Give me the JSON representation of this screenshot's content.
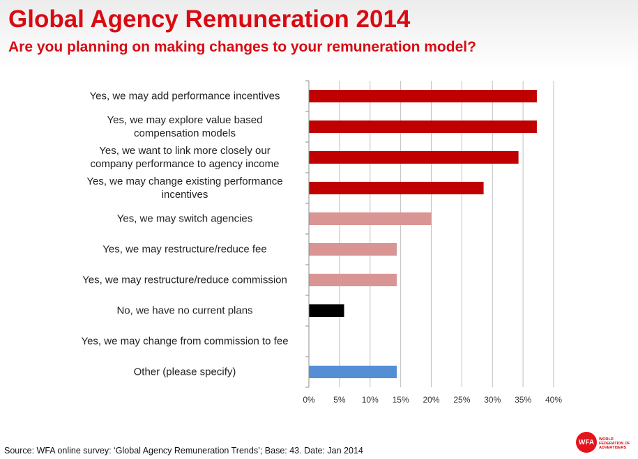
{
  "header": {
    "title": "Global Agency Remuneration 2014",
    "subtitle": "Are you planning on making changes to your remuneration model?"
  },
  "footer": {
    "source": "Source: WFA online survey: ‘Global Agency Remuneration Trends’; Base: 43. Date: Jan 2014"
  },
  "logo": {
    "mark": "WFA",
    "line1": "WORLD FEDERATION OF",
    "line2": "ADVERTISERS",
    "color": "#e3141c"
  },
  "chart_data": {
    "type": "bar",
    "orientation": "horizontal",
    "categories": [
      "Yes, we may add performance incentives",
      "Yes, we may explore value based compensation models",
      "Yes, we want to link more closely our company performance to agency income",
      "Yes, we may change existing performance incentives",
      "Yes, we may switch agencies",
      "Yes, we may restructure/reduce fee",
      "Yes, we may restructure/reduce commission",
      "No, we have no current plans",
      "Yes, we may change from commission to fee",
      "Other (please specify)"
    ],
    "category_lines": [
      [
        "Yes, we may add performance incentives"
      ],
      [
        "Yes, we may explore value based",
        "compensation models"
      ],
      [
        "Yes, we want to link more closely our",
        "company performance to agency income"
      ],
      [
        "Yes, we may change existing performance",
        "incentives"
      ],
      [
        "Yes, we may switch agencies"
      ],
      [
        "Yes, we may restructure/reduce fee"
      ],
      [
        "Yes, we may restructure/reduce commission"
      ],
      [
        "No, we have no current plans"
      ],
      [
        "Yes, we may change from commission to fee"
      ],
      [
        "Other (please specify)"
      ]
    ],
    "values": [
      37.2,
      37.2,
      34.2,
      28.5,
      20.0,
      14.3,
      14.3,
      5.7,
      0,
      14.3
    ],
    "colors": [
      "#c00000",
      "#c00000",
      "#c00000",
      "#c00000",
      "#d99594",
      "#d99594",
      "#d99594",
      "#000000",
      "#d99594",
      "#558ed5"
    ],
    "xlim": [
      0,
      40
    ],
    "xticks": [
      "0%",
      "5%",
      "10%",
      "15%",
      "20%",
      "25%",
      "30%",
      "35%",
      "40%"
    ],
    "xtick_values": [
      0,
      5,
      10,
      15,
      20,
      25,
      30,
      35,
      40
    ],
    "grid": "vertical",
    "gridline_color": "#bfbfbf"
  }
}
